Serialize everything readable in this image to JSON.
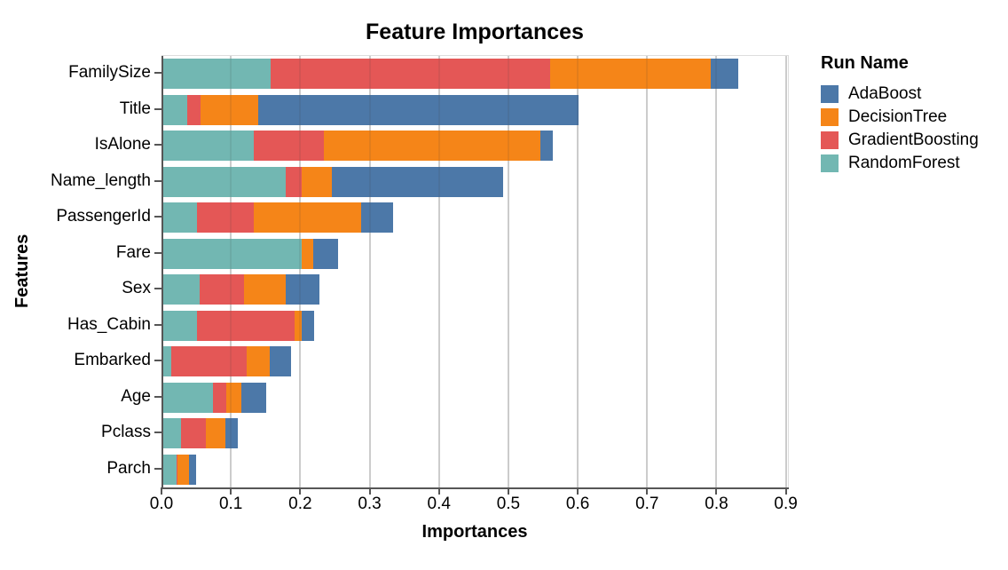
{
  "title": "Feature Importances",
  "legend": {
    "title": "Run Name",
    "items": [
      {
        "label": "AdaBoost",
        "color": "#4c78a8"
      },
      {
        "label": "DecisionTree",
        "color": "#f58518"
      },
      {
        "label": "GradientBoosting",
        "color": "#e45756"
      },
      {
        "label": "RandomForest",
        "color": "#72b7b2"
      }
    ]
  },
  "chart_data": {
    "type": "bar",
    "orientation": "horizontal",
    "stacked": true,
    "title": "Feature Importances",
    "xlabel": "Importances",
    "ylabel": "Features",
    "legend_title": "Run Name",
    "legend_position": "right",
    "grid": true,
    "xlim": [
      0,
      0.903
    ],
    "xticks": [
      0.0,
      0.1,
      0.2,
      0.3,
      0.4,
      0.5,
      0.6,
      0.7,
      0.8,
      0.9
    ],
    "xtick_labels": [
      "0.0",
      "0.1",
      "0.2",
      "0.3",
      "0.4",
      "0.5",
      "0.6",
      "0.7",
      "0.8",
      "0.9"
    ],
    "categories": [
      "FamilySize",
      "Title",
      "IsAlone",
      "Name_length",
      "PassengerId",
      "Fare",
      "Sex",
      "Has_Cabin",
      "Embarked",
      "Age",
      "Pclass",
      "Parch"
    ],
    "stack_order": [
      "RandomForest",
      "GradientBoosting",
      "DecisionTree",
      "AdaBoost"
    ],
    "series": [
      {
        "name": "AdaBoost",
        "color": "#4c78a8",
        "values": [
          0.04,
          0.462,
          0.018,
          0.247,
          0.046,
          0.036,
          0.049,
          0.018,
          0.031,
          0.036,
          0.017,
          0.01
        ]
      },
      {
        "name": "DecisionTree",
        "color": "#f58518",
        "values": [
          0.231,
          0.083,
          0.312,
          0.043,
          0.154,
          0.016,
          0.06,
          0.011,
          0.033,
          0.022,
          0.029,
          0.016
        ]
      },
      {
        "name": "GradientBoosting",
        "color": "#e45756",
        "values": [
          0.403,
          0.019,
          0.101,
          0.024,
          0.083,
          0.0,
          0.063,
          0.141,
          0.109,
          0.019,
          0.035,
          0.002
        ]
      },
      {
        "name": "RandomForest",
        "color": "#72b7b2",
        "values": [
          0.155,
          0.035,
          0.13,
          0.176,
          0.048,
          0.2,
          0.053,
          0.048,
          0.011,
          0.072,
          0.026,
          0.019
        ]
      }
    ],
    "totals": [
      0.829,
      0.599,
      0.561,
      0.49,
      0.331,
      0.252,
      0.225,
      0.218,
      0.184,
      0.149,
      0.107,
      0.047
    ]
  }
}
